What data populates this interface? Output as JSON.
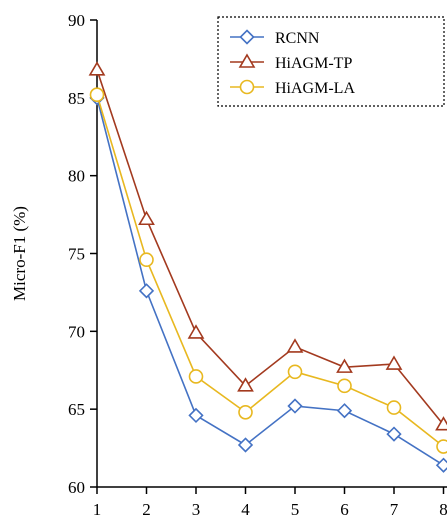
{
  "chart_data": {
    "type": "line",
    "title": "",
    "xlabel": "",
    "ylabel": "Micro-F1 (%)",
    "x": [
      1,
      2,
      3,
      4,
      5,
      6,
      7,
      8
    ],
    "ylim": [
      60,
      90
    ],
    "yticks": [
      60,
      65,
      70,
      75,
      80,
      85,
      90
    ],
    "grid": false,
    "legend_position": "top-right",
    "series": [
      {
        "name": "RCNN",
        "marker": "diamond",
        "color": "#4472C4",
        "values": [
          85.0,
          72.6,
          64.6,
          62.7,
          65.2,
          64.9,
          63.4,
          61.4
        ]
      },
      {
        "name": "HiAGM-TP",
        "marker": "triangle",
        "color": "#A33A1F",
        "values": [
          86.8,
          77.2,
          69.9,
          66.5,
          69.0,
          67.7,
          67.9,
          64.0
        ]
      },
      {
        "name": "HiAGM-LA",
        "marker": "circle",
        "color": "#E8B820",
        "values": [
          85.2,
          74.6,
          67.1,
          64.8,
          67.4,
          66.5,
          65.1,
          62.6
        ]
      }
    ]
  }
}
